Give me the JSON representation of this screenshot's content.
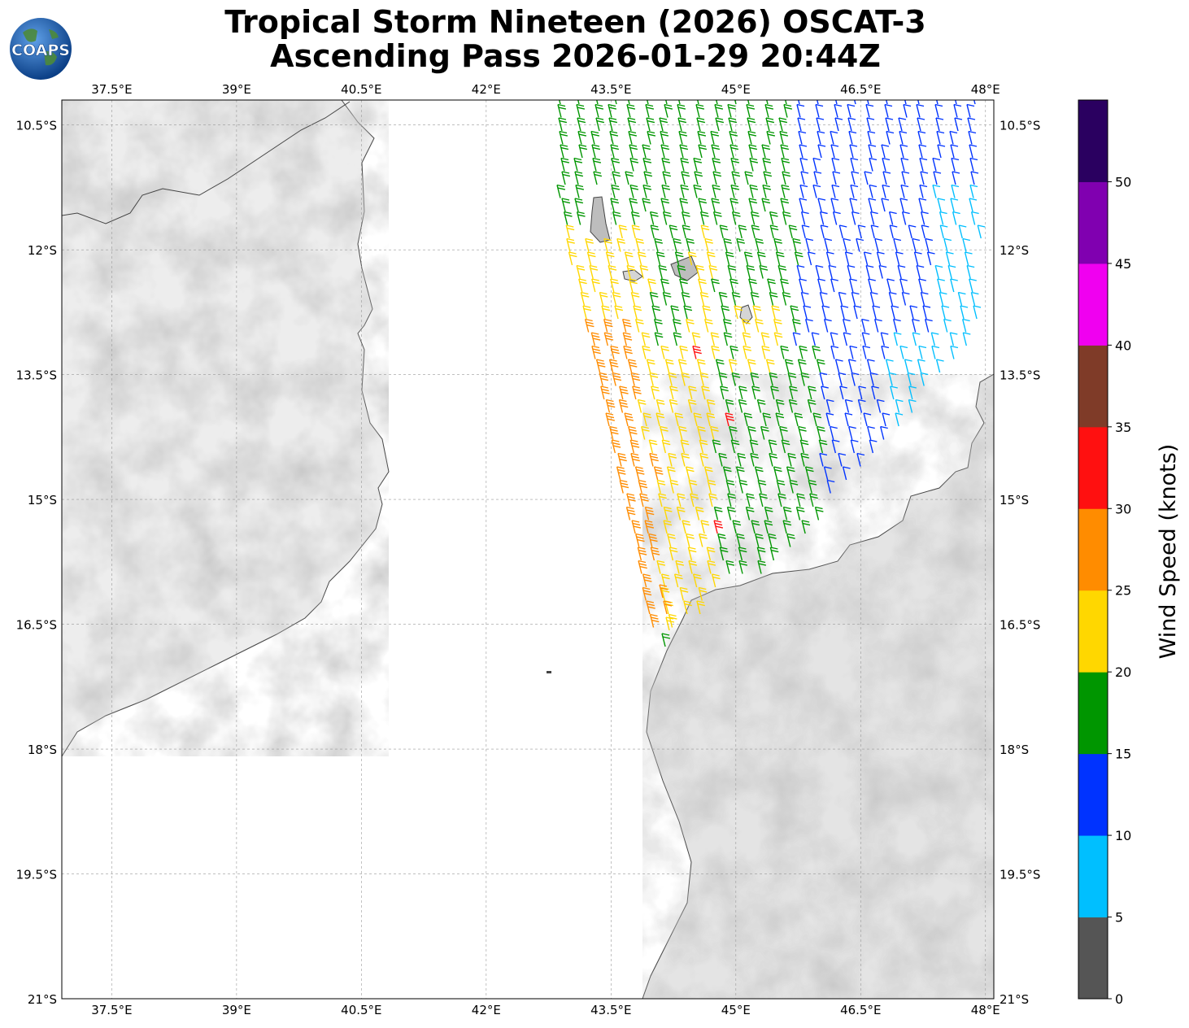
{
  "title": {
    "line1": "Tropical Storm Nineteen (2026) OSCAT-3",
    "line2": "Ascending Pass 2026-01-29 20:44Z"
  },
  "logo": {
    "text": "COAPS",
    "icon": "globe-logo-icon"
  },
  "map": {
    "lon_ticks": [
      "37.5°E",
      "39°E",
      "40.5°E",
      "42°E",
      "43.5°E",
      "45°E",
      "46.5°E",
      "48°E"
    ],
    "lat_ticks": [
      "10.5°S",
      "12°S",
      "13.5°S",
      "15°S",
      "16.5°S",
      "18°S",
      "19.5°S",
      "21°S"
    ],
    "lon_values": [
      37.5,
      39,
      40.5,
      42,
      43.5,
      45,
      46.5,
      48
    ],
    "lat_values": [
      -10.5,
      -12,
      -13.5,
      -15,
      -16.5,
      -18,
      -19.5,
      -21
    ],
    "extent": {
      "lon_min": 36.9,
      "lon_max": 48.1,
      "lat_min": -21,
      "lat_max": -10.2
    },
    "grid": true,
    "land_shading": "grayscale topography",
    "coastline_color": "#444444"
  },
  "colorbar": {
    "label": "Wind Speed (knots)",
    "ticks": [
      "0",
      "5",
      "10",
      "15",
      "20",
      "25",
      "30",
      "35",
      "40",
      "45",
      "50"
    ],
    "colors": [
      "#555555",
      "#00bfff",
      "#0033ff",
      "#009600",
      "#ffd700",
      "#ff8c00",
      "#ff1010",
      "#7f3b28",
      "#f000f0",
      "#8000b0",
      "#2a0060"
    ]
  },
  "chart_data": {
    "type": "wind_barbs",
    "units": "knots",
    "swath": "OSCAT-3 ascending pass",
    "regions": [
      {
        "area": "northeast, 46-48°E 10.5-13.5°S",
        "speed_range": [
          10,
          15
        ],
        "color": "#0033ff"
      },
      {
        "area": "east edge near 47.5°E 13-15°S",
        "speed_range": [
          5,
          10
        ],
        "color": "#00bfff"
      },
      {
        "area": "central 43-46°E 10.5-15.5°S",
        "speed_range": [
          15,
          20
        ],
        "color": "#009600"
      },
      {
        "area": "western swath 43.5-45°E 12-16°S",
        "speed_range": [
          20,
          25
        ],
        "color": "#ffd700"
      },
      {
        "area": "western edge 43.7-44.6°E 13-16.3°S",
        "speed_range": [
          25,
          30
        ],
        "color": "#ff8c00"
      },
      {
        "area": "isolated near 44.5°E 13.3°S, 45°E 14°S, 44.3°E 14.5°S, 44.7°E 15.5°S",
        "speed_range": [
          30,
          35
        ],
        "color": "#ff1010"
      }
    ]
  }
}
